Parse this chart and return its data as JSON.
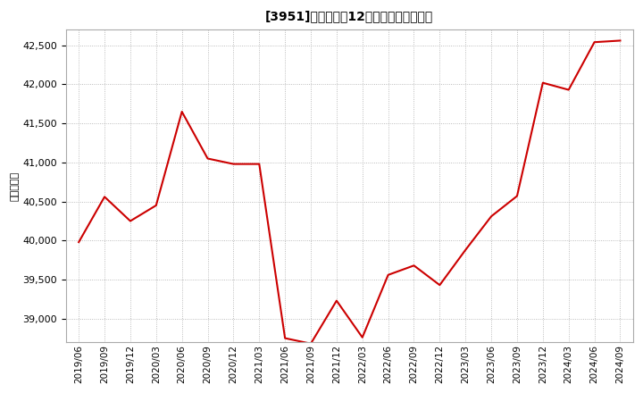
{
  "title": "[3951]　売上高の12か月移動合計の推移",
  "ylabel": "（百万円）",
  "line_color": "#cc0000",
  "background_color": "#ffffff",
  "plot_bg_color": "#ffffff",
  "grid_color": "#aaaaaa",
  "ylim": [
    38700,
    42700
  ],
  "yticks": [
    39000,
    39500,
    40000,
    40500,
    41000,
    41500,
    42000,
    42500
  ],
  "dates": [
    "2019/06",
    "2019/09",
    "2019/12",
    "2020/03",
    "2020/06",
    "2020/09",
    "2020/12",
    "2021/03",
    "2021/06",
    "2021/09",
    "2021/12",
    "2022/03",
    "2022/06",
    "2022/09",
    "2022/12",
    "2023/03",
    "2023/06",
    "2023/09",
    "2023/12",
    "2024/03",
    "2024/06",
    "2024/09"
  ],
  "values": [
    39980,
    40560,
    40250,
    40450,
    41650,
    41050,
    40980,
    40980,
    38750,
    38680,
    39230,
    38760,
    39560,
    39680,
    39430,
    39880,
    40310,
    40570,
    42020,
    41930,
    42540,
    42560
  ]
}
